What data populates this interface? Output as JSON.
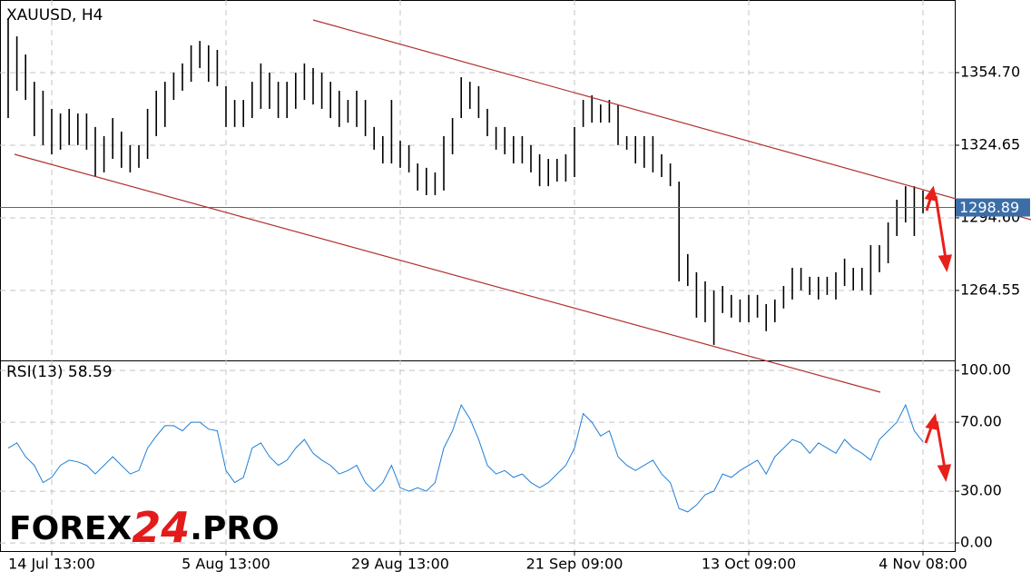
{
  "chart_data": [
    {
      "type": "hilo",
      "title": "XAUUSD, H4",
      "color": "#000000",
      "grid": true,
      "categories": [
        null,
        null,
        null,
        null,
        null,
        "14 Jul 13:00",
        null,
        null,
        null,
        null,
        null,
        null,
        null,
        null,
        null,
        null,
        null,
        null,
        null,
        null,
        null,
        null,
        null,
        null,
        null,
        "5 Aug 13:00",
        null,
        null,
        null,
        null,
        null,
        null,
        null,
        null,
        null,
        null,
        null,
        null,
        null,
        null,
        null,
        null,
        null,
        null,
        null,
        "29 Aug 13:00",
        null,
        null,
        null,
        null,
        null,
        null,
        null,
        null,
        null,
        null,
        null,
        null,
        null,
        null,
        null,
        null,
        null,
        null,
        null,
        "21 Sep 09:00",
        null,
        null,
        null,
        null,
        null,
        null,
        null,
        null,
        null,
        null,
        null,
        null,
        null,
        null,
        null,
        null,
        null,
        null,
        null,
        "13 Oct 09:00",
        null,
        null,
        null,
        null,
        null,
        null,
        null,
        null,
        null,
        null,
        null,
        null,
        null,
        null,
        null,
        null,
        null,
        null,
        null,
        "4 Nov 08:00"
      ],
      "high": [
        1377.2,
        1369.7,
        1362.2,
        1350.9,
        1347.2,
        1339.7,
        1337.8,
        1339.7,
        1337.8,
        1337.8,
        1332.2,
        1328.4,
        1335.9,
        1330.3,
        1324.7,
        1324.7,
        1339.7,
        1347.2,
        1350.9,
        1354.7,
        1358.5,
        1366.0,
        1367.8,
        1366.0,
        1364.1,
        1349.1,
        1343.4,
        1343.4,
        1350.9,
        1358.5,
        1354.7,
        1350.9,
        1350.9,
        1354.7,
        1358.5,
        1356.6,
        1354.7,
        1350.9,
        1347.2,
        1343.4,
        1347.2,
        1343.4,
        1332.2,
        1328.4,
        1343.4,
        1326.5,
        1324.7,
        1317.1,
        1315.3,
        1313.4,
        1328.4,
        1335.9,
        1352.8,
        1350.9,
        1349.1,
        1339.7,
        1332.2,
        1332.2,
        1328.4,
        1328.4,
        1324.7,
        1320.9,
        1319.0,
        1319.0,
        1320.9,
        1332.2,
        1343.4,
        1345.3,
        1341.5,
        1343.4,
        1341.5,
        1328.4,
        1328.4,
        1328.4,
        1328.4,
        1320.9,
        1317.1,
        1309.6,
        1279.6,
        1272.1,
        1268.3,
        1264.6,
        1266.4,
        1262.7,
        1260.8,
        1262.7,
        1262.7,
        1258.9,
        1260.8,
        1266.4,
        1273.9,
        1273.9,
        1270.2,
        1270.2,
        1270.2,
        1272.1,
        1277.7,
        1273.9,
        1273.9,
        1283.3,
        1283.3,
        1292.7,
        1302.1,
        1307.7,
        1307.7,
        1305.9
      ],
      "low": [
        1335.9,
        1347.2,
        1343.4,
        1328.4,
        1324.7,
        1320.9,
        1322.8,
        1324.7,
        1324.7,
        1322.8,
        1311.5,
        1313.4,
        1319.0,
        1315.3,
        1313.4,
        1315.3,
        1319.0,
        1328.4,
        1332.2,
        1343.4,
        1347.2,
        1350.9,
        1356.6,
        1350.9,
        1349.1,
        1332.2,
        1332.2,
        1332.2,
        1335.9,
        1339.7,
        1339.7,
        1335.9,
        1335.9,
        1339.7,
        1343.4,
        1341.5,
        1339.7,
        1335.9,
        1332.2,
        1334.0,
        1332.2,
        1328.4,
        1322.8,
        1317.1,
        1317.1,
        1315.3,
        1313.4,
        1305.9,
        1304.0,
        1304.0,
        1305.9,
        1320.9,
        1335.9,
        1339.7,
        1335.9,
        1328.4,
        1322.8,
        1320.9,
        1317.1,
        1317.1,
        1313.4,
        1307.7,
        1307.7,
        1309.6,
        1309.6,
        1311.5,
        1332.2,
        1334.0,
        1334.0,
        1334.0,
        1324.7,
        1322.8,
        1317.1,
        1315.3,
        1313.4,
        1311.5,
        1307.7,
        1268.3,
        1266.4,
        1253.3,
        1251.4,
        1242.0,
        1255.2,
        1253.3,
        1251.4,
        1251.4,
        1253.3,
        1247.7,
        1251.4,
        1257.1,
        1260.8,
        1264.6,
        1262.7,
        1260.8,
        1262.7,
        1260.8,
        1266.4,
        1264.6,
        1264.6,
        1262.7,
        1272.1,
        1275.8,
        1287.1,
        1292.7,
        1287.1,
        1296.5
      ],
      "ylim": [
        1235.6,
        1384.0
      ],
      "yticks": [
        {
          "value": 1264.55,
          "label": "1264.55"
        },
        {
          "value": 1294.6,
          "label": "1294.60"
        },
        {
          "value": 1324.65,
          "label": "1324.65"
        },
        {
          "value": 1354.7,
          "label": "1354.70"
        }
      ],
      "last_price": 1298.89,
      "last_price_color": "#3b6ea8"
    },
    {
      "type": "line",
      "title": "RSI(13) 58.59",
      "color": "#1f7fd8",
      "grid": true,
      "values": [
        55,
        58,
        50,
        45,
        35,
        38,
        45,
        48,
        47,
        45,
        40,
        45,
        50,
        45,
        40,
        42,
        55,
        62,
        68,
        68,
        65,
        70,
        70,
        66,
        65,
        42,
        35,
        38,
        55,
        58,
        50,
        45,
        48,
        55,
        60,
        52,
        48,
        45,
        40,
        42,
        45,
        35,
        30,
        35,
        45,
        32,
        30,
        32,
        30,
        35,
        55,
        65,
        80,
        72,
        60,
        45,
        40,
        42,
        38,
        40,
        35,
        32,
        35,
        40,
        45,
        55,
        75,
        70,
        62,
        65,
        50,
        45,
        42,
        45,
        48,
        40,
        35,
        20,
        18,
        22,
        28,
        30,
        40,
        38,
        42,
        45,
        48,
        40,
        50,
        55,
        60,
        58,
        52,
        58,
        55,
        52,
        60,
        55,
        52,
        48,
        60,
        65,
        70,
        80,
        65,
        58.59
      ],
      "ylim": [
        -4.7,
        105.3
      ],
      "yticks": [
        {
          "value": 0,
          "label": "0.00"
        },
        {
          "value": 30,
          "label": "30.00"
        },
        {
          "value": 70,
          "label": "70.00"
        },
        {
          "value": 100,
          "label": "100.00"
        }
      ]
    }
  ],
  "logo": {
    "part1": "FOREX",
    "part2": "24",
    "part3": ".PRO"
  }
}
